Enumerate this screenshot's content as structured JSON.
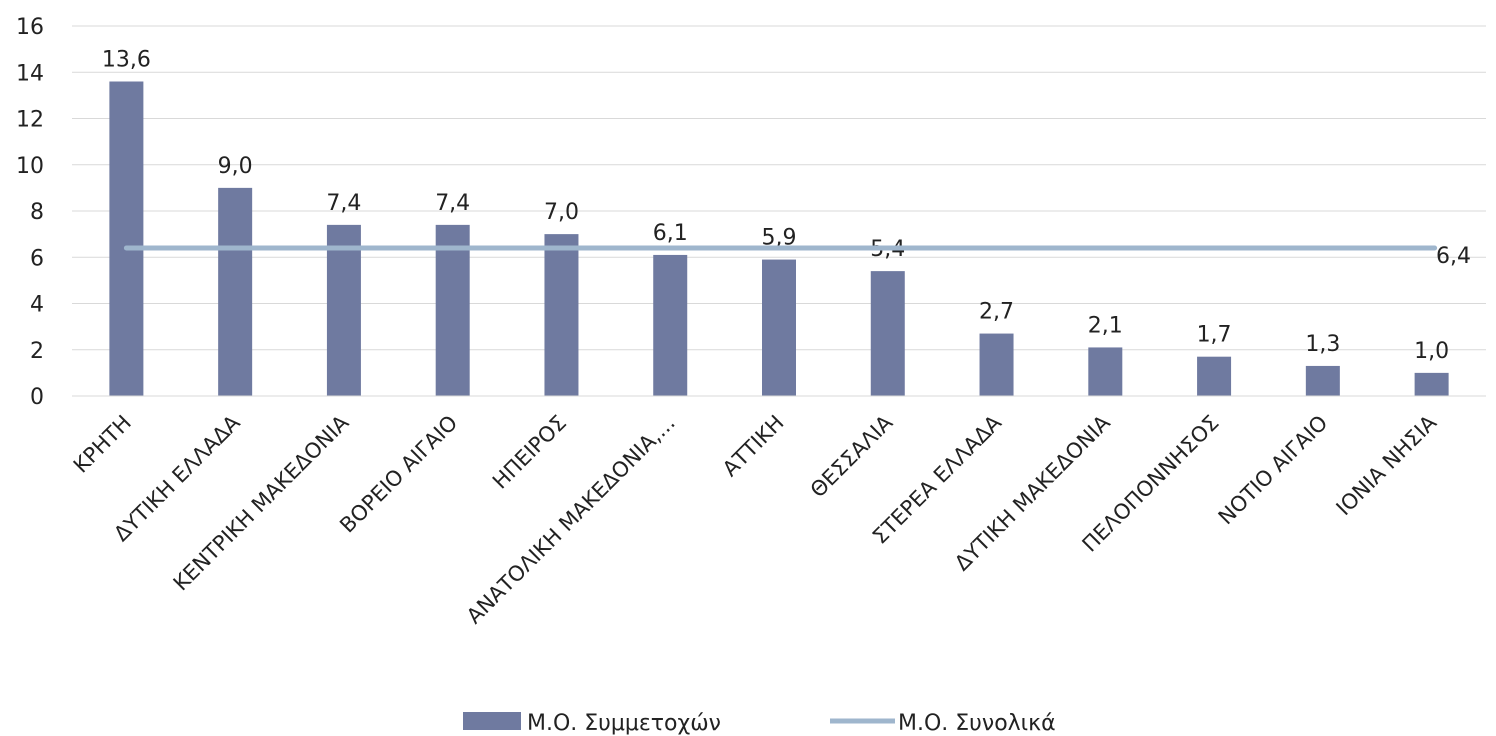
{
  "chart_data": {
    "type": "bar",
    "categories": [
      "ΚΡΗΤΗ",
      "ΔΥΤΙΚΗ ΕΛΛΑΔΑ",
      "ΚΕΝΤΡΙΚΗ ΜΑΚΕΔΟΝΙΑ",
      "ΒΟΡΕΙΟ ΑΙΓΑΙΟ",
      "ΗΠΕΙΡΟΣ",
      "ΑΝΑΤΟΛΙΚΗ ΜΑΚΕΔΟΝΙΑ,...",
      "ΑΤΤΙΚΗ",
      "ΘΕΣΣΑΛΙΑ",
      "ΣΤΕΡΕΑ ΕΛΛΑΔΑ",
      "ΔΥΤΙΚΗ ΜΑΚΕΔΟΝΙΑ",
      "ΠΕΛΟΠΟΝΝΗΣΟΣ",
      "ΝΟΤΙΟ ΑΙΓΑΙΟ",
      "ΙΟΝΙΑ ΝΗΣΙΑ"
    ],
    "series": [
      {
        "name": "Μ.Ο. Συμμετοχών",
        "type": "bar",
        "color": "#6f7aa0",
        "values": [
          13.6,
          9.0,
          7.4,
          7.4,
          7.0,
          6.1,
          5.9,
          5.4,
          2.7,
          2.1,
          1.7,
          1.3,
          1.0
        ],
        "labels": [
          "13,6",
          "9,0",
          "7,4",
          "7,4",
          "7,0",
          "6,1",
          "5,9",
          "5,4",
          "2,7",
          "2,1",
          "1,7",
          "1,3",
          "1,0"
        ]
      },
      {
        "name": "Μ.Ο. Συνολικά",
        "type": "line",
        "color": "#9fb6cd",
        "value": 6.4,
        "label": "6,4"
      }
    ],
    "ylim": [
      0,
      16
    ],
    "yticks": [
      "0",
      "2",
      "4",
      "6",
      "8",
      "10",
      "12",
      "14",
      "16"
    ],
    "grid": true,
    "legend": "bottom"
  }
}
